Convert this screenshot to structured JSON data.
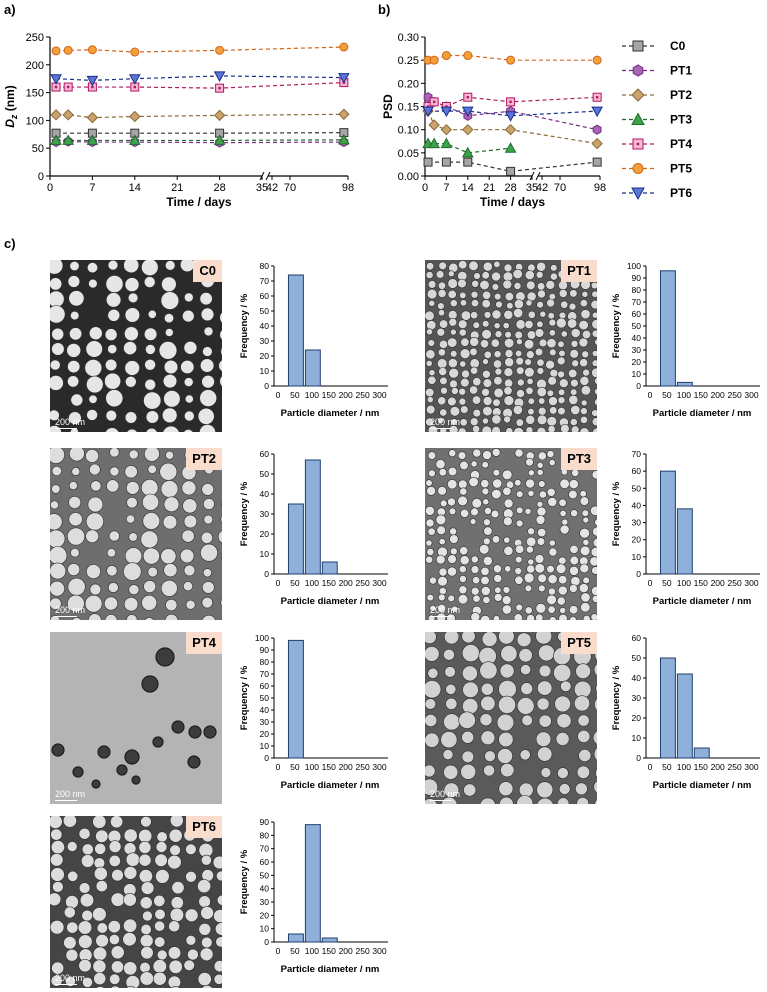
{
  "panels": {
    "a": "a)",
    "b": "b)",
    "c": "c)"
  },
  "chart_data": [
    {
      "type": "line",
      "panel": "a)",
      "ylabel_main": "D",
      "ylabel_sub": "z",
      "ylabel_unit": " (nm)",
      "xlabel": "Time / days",
      "ylim": [
        0,
        250
      ],
      "yticks": [
        "0",
        "50",
        "100",
        "150",
        "200",
        "250"
      ],
      "xticks": [
        "0",
        "7",
        "14",
        "21",
        "28",
        "35",
        "42",
        "70",
        "98"
      ],
      "series": [
        {
          "name": "C0",
          "x": [
            1,
            7,
            14,
            28,
            96
          ],
          "y": [
            77,
            77,
            77,
            77,
            78
          ]
        },
        {
          "name": "PT1",
          "x": [
            1,
            3,
            7,
            14,
            28,
            96
          ],
          "y": [
            61,
            62,
            61,
            61,
            60,
            61
          ]
        },
        {
          "name": "PT2",
          "x": [
            1,
            3,
            7,
            14,
            28,
            96
          ],
          "y": [
            110,
            110,
            105,
            107,
            109,
            111
          ]
        },
        {
          "name": "PT3",
          "x": [
            1,
            3,
            7,
            14,
            28,
            96
          ],
          "y": [
            64,
            64,
            64,
            64,
            64,
            65
          ]
        },
        {
          "name": "PT4",
          "x": [
            1,
            3,
            7,
            14,
            28,
            96
          ],
          "y": [
            160,
            160,
            160,
            160,
            158,
            168
          ]
        },
        {
          "name": "PT5",
          "x": [
            1,
            3,
            7,
            14,
            28,
            96
          ],
          "y": [
            225,
            226,
            227,
            223,
            226,
            232
          ]
        },
        {
          "name": "PT6",
          "x": [
            1,
            7,
            14,
            28,
            96
          ],
          "y": [
            175,
            172,
            175,
            180,
            177
          ]
        }
      ]
    },
    {
      "type": "line",
      "panel": "b)",
      "ylabel": "PSD",
      "xlabel": "Time / days",
      "ylim": [
        0,
        0.3
      ],
      "yticks": [
        "0.00",
        "0.05",
        "0.10",
        "0.15",
        "0.20",
        "0.25",
        "0.30"
      ],
      "xticks": [
        "0",
        "7",
        "14",
        "21",
        "28",
        "35",
        "42",
        "70",
        "98"
      ],
      "legend_position": "right",
      "series": [
        {
          "name": "C0",
          "x": [
            1,
            7,
            14,
            28,
            96
          ],
          "y": [
            0.03,
            0.03,
            0.03,
            0.01,
            0.03
          ]
        },
        {
          "name": "PT1",
          "x": [
            1,
            3,
            7,
            14,
            28,
            96
          ],
          "y": [
            0.17,
            0.16,
            0.15,
            0.13,
            0.14,
            0.1
          ]
        },
        {
          "name": "PT2",
          "x": [
            1,
            3,
            7,
            14,
            28,
            96
          ],
          "y": [
            0.14,
            0.11,
            0.1,
            0.1,
            0.1,
            0.07
          ]
        },
        {
          "name": "PT3",
          "x": [
            1,
            3,
            7,
            14,
            28,
            96
          ],
          "y": [
            0.07,
            0.07,
            0.07,
            0.05,
            0.06,
            null
          ]
        },
        {
          "name": "PT4",
          "x": [
            1,
            3,
            7,
            14,
            28,
            96
          ],
          "y": [
            0.15,
            0.16,
            0.15,
            0.17,
            0.16,
            0.17
          ]
        },
        {
          "name": "PT5",
          "x": [
            1,
            3,
            7,
            14,
            28,
            96
          ],
          "y": [
            0.25,
            0.25,
            0.26,
            0.26,
            0.25,
            0.25
          ]
        },
        {
          "name": "PT6",
          "x": [
            1,
            7,
            14,
            28,
            96
          ],
          "y": [
            0.14,
            0.14,
            0.14,
            0.13,
            0.14
          ]
        }
      ]
    },
    {
      "type": "bar",
      "sample": "C0",
      "xlabel": "Particle diameter / nm",
      "ylabel": "Frequency / %",
      "categories": [
        "0",
        "50",
        "100",
        "150",
        "200",
        "250",
        "300"
      ],
      "values": [
        0,
        74,
        24,
        0,
        0,
        0,
        0
      ],
      "ylim": [
        0,
        80
      ],
      "yticks": [
        "0",
        "10",
        "20",
        "30",
        "40",
        "50",
        "60",
        "70",
        "80"
      ]
    },
    {
      "type": "bar",
      "sample": "PT1",
      "xlabel": "Particle diameter / nm",
      "ylabel": "Frequency / %",
      "categories": [
        "0",
        "50",
        "100",
        "150",
        "200",
        "250",
        "300"
      ],
      "values": [
        0,
        96,
        3,
        0,
        0,
        0,
        0
      ],
      "ylim": [
        0,
        100
      ],
      "yticks": [
        "0",
        "10",
        "20",
        "30",
        "40",
        "50",
        "60",
        "70",
        "80",
        "90",
        "100"
      ]
    },
    {
      "type": "bar",
      "sample": "PT2",
      "xlabel": "Particle diameter / nm",
      "ylabel": "Frequency / %",
      "categories": [
        "0",
        "50",
        "100",
        "150",
        "200",
        "250",
        "300"
      ],
      "values": [
        0,
        35,
        57,
        6,
        0,
        0,
        0
      ],
      "ylim": [
        0,
        60
      ],
      "yticks": [
        "0",
        "10",
        "20",
        "30",
        "40",
        "50",
        "60"
      ]
    },
    {
      "type": "bar",
      "sample": "PT3",
      "xlabel": "Particle diameter / nm",
      "ylabel": "Frequency / %",
      "categories": [
        "0",
        "50",
        "100",
        "150",
        "200",
        "250",
        "300"
      ],
      "values": [
        0,
        60,
        38,
        0,
        0,
        0,
        0
      ],
      "ylim": [
        0,
        70
      ],
      "yticks": [
        "0",
        "10",
        "20",
        "30",
        "40",
        "50",
        "60",
        "70"
      ]
    },
    {
      "type": "bar",
      "sample": "PT4",
      "xlabel": "Particle diameter / nm",
      "ylabel": "Frequency / %",
      "categories": [
        "0",
        "50",
        "100",
        "150",
        "200",
        "250",
        "300"
      ],
      "values": [
        0,
        98,
        0,
        0,
        0,
        0,
        0
      ],
      "ylim": [
        0,
        100
      ],
      "yticks": [
        "0",
        "10",
        "20",
        "30",
        "40",
        "50",
        "60",
        "70",
        "80",
        "90",
        "100"
      ]
    },
    {
      "type": "bar",
      "sample": "PT5",
      "xlabel": "Particle diameter / nm",
      "ylabel": "Frequency / %",
      "categories": [
        "0",
        "50",
        "100",
        "150",
        "200",
        "250",
        "300"
      ],
      "values": [
        0,
        50,
        42,
        5,
        0,
        0,
        0
      ],
      "ylim": [
        0,
        60
      ],
      "yticks": [
        "0",
        "10",
        "20",
        "30",
        "40",
        "50",
        "60"
      ]
    },
    {
      "type": "bar",
      "sample": "PT6",
      "xlabel": "Particle diameter / nm",
      "ylabel": "Frequency / %",
      "categories": [
        "0",
        "50",
        "100",
        "150",
        "200",
        "250",
        "300"
      ],
      "values": [
        0,
        6,
        88,
        3,
        0,
        0,
        0
      ],
      "ylim": [
        0,
        90
      ],
      "yticks": [
        "0",
        "10",
        "20",
        "30",
        "40",
        "50",
        "60",
        "70",
        "80",
        "90"
      ]
    }
  ],
  "legend": [
    "C0",
    "PT1",
    "PT2",
    "PT3",
    "PT4",
    "PT5",
    "PT6"
  ],
  "series_style": {
    "C0": {
      "color": "#333333",
      "fill": "#a6a6a6",
      "marker": "square"
    },
    "PT1": {
      "color": "#7a2a88",
      "fill": "#a767b3",
      "marker": "hexagon"
    },
    "PT2": {
      "color": "#8a6a3a",
      "fill": "#c9a36a",
      "marker": "diamond"
    },
    "PT3": {
      "color": "#1f6e2a",
      "fill": "#3da44a",
      "marker": "triangle-up"
    },
    "PT4": {
      "color": "#b0175f",
      "fill": "#e55a9a",
      "marker": "square-dot"
    },
    "PT5": {
      "color": "#d4661a",
      "fill": "#f2a03a",
      "marker": "circle"
    },
    "PT6": {
      "color": "#1b2f8a",
      "fill": "#5a76d6",
      "marker": "triangle-down"
    }
  },
  "bar_color": "#8fb0d8",
  "micrographs": [
    {
      "label": "C0",
      "scale": "200 nm"
    },
    {
      "label": "PT1",
      "scale": "200 nm"
    },
    {
      "label": "PT2",
      "scale": "200 nm"
    },
    {
      "label": "PT3",
      "scale": "200 nm"
    },
    {
      "label": "PT4",
      "scale": "200 nm"
    },
    {
      "label": "PT5",
      "scale": "200 nm"
    },
    {
      "label": "PT6",
      "scale": "200 nm"
    }
  ]
}
